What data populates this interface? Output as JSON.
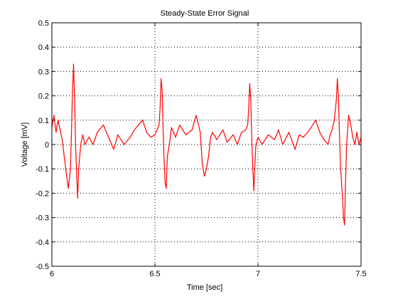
{
  "chart_data": {
    "type": "line",
    "title": "Steady-State Error Signal",
    "xlabel": "Time [sec]",
    "ylabel": "Voltage [mV]",
    "xlim": [
      6,
      7.5
    ],
    "ylim": [
      -0.5,
      0.5
    ],
    "xticks": [
      6,
      6.5,
      7,
      7.5
    ],
    "xtick_labels": [
      "6",
      "6.5",
      "7",
      "7.5"
    ],
    "yticks": [
      -0.5,
      -0.4,
      -0.3,
      -0.2,
      -0.1,
      0,
      0.1,
      0.2,
      0.3,
      0.4,
      0.5
    ],
    "ytick_labels": [
      "-0.5",
      "-0.4",
      "-0.3",
      "-0.2",
      "-0.1",
      "0",
      "0.1",
      "0.2",
      "0.3",
      "0.4",
      "0.5"
    ],
    "grid": true,
    "line_color": "#ff0000",
    "series": [
      {
        "x": [
          6.0,
          6.01,
          6.02,
          6.03,
          6.04,
          6.05,
          6.06,
          6.07,
          6.08,
          6.09,
          6.095,
          6.1,
          6.105,
          6.11,
          6.115,
          6.12,
          6.125,
          6.13,
          6.14,
          6.15,
          6.16,
          6.18,
          6.2,
          6.22,
          6.25,
          6.28,
          6.3,
          6.32,
          6.35,
          6.38,
          6.4,
          6.42,
          6.44,
          6.46,
          6.48,
          6.5,
          6.51,
          6.52,
          6.525,
          6.53,
          6.535,
          6.54,
          6.545,
          6.55,
          6.555,
          6.56,
          6.57,
          6.58,
          6.6,
          6.62,
          6.65,
          6.68,
          6.7,
          6.72,
          6.73,
          6.74,
          6.75,
          6.76,
          6.77,
          6.78,
          6.8,
          6.83,
          6.85,
          6.88,
          6.9,
          6.92,
          6.94,
          6.95,
          6.955,
          6.96,
          6.965,
          6.97,
          6.975,
          6.98,
          6.985,
          6.99,
          7.0,
          7.02,
          7.05,
          7.08,
          7.1,
          7.12,
          7.15,
          7.18,
          7.2,
          7.22,
          7.25,
          7.28,
          7.3,
          7.32,
          7.34,
          7.35,
          7.36,
          7.37,
          7.38,
          7.385,
          7.39,
          7.395,
          7.4,
          7.405,
          7.41,
          7.415,
          7.42,
          7.425,
          7.43,
          7.44,
          7.45,
          7.46,
          7.47,
          7.48,
          7.49,
          7.5
        ],
        "y": [
          0.07,
          0.12,
          0.05,
          0.1,
          0.06,
          0.02,
          -0.05,
          -0.12,
          -0.18,
          -0.1,
          0.05,
          0.22,
          0.33,
          0.2,
          0.0,
          -0.12,
          -0.22,
          -0.1,
          0.0,
          0.04,
          0.0,
          0.03,
          0.0,
          0.05,
          0.08,
          0.02,
          -0.02,
          0.04,
          0.0,
          0.03,
          0.06,
          0.08,
          0.1,
          0.05,
          0.03,
          0.04,
          0.06,
          0.08,
          0.15,
          0.27,
          0.22,
          0.05,
          -0.08,
          -0.16,
          -0.18,
          -0.05,
          0.0,
          0.07,
          0.03,
          0.08,
          0.04,
          0.06,
          0.12,
          0.05,
          -0.08,
          -0.13,
          -0.1,
          -0.05,
          0.03,
          0.05,
          0.02,
          0.06,
          0.01,
          0.04,
          0.0,
          0.05,
          0.06,
          0.08,
          0.15,
          0.25,
          0.18,
          0.02,
          -0.1,
          -0.19,
          -0.08,
          0.0,
          0.03,
          0.0,
          0.04,
          0.02,
          0.06,
          0.0,
          0.05,
          -0.02,
          0.04,
          0.03,
          0.06,
          0.1,
          0.05,
          0.02,
          0.0,
          0.04,
          0.06,
          0.1,
          0.18,
          0.27,
          0.2,
          0.05,
          -0.08,
          -0.15,
          -0.22,
          -0.3,
          -0.33,
          -0.15,
          0.0,
          0.12,
          0.08,
          0.03,
          0.0,
          0.05,
          0.0,
          0.03
        ]
      }
    ]
  }
}
